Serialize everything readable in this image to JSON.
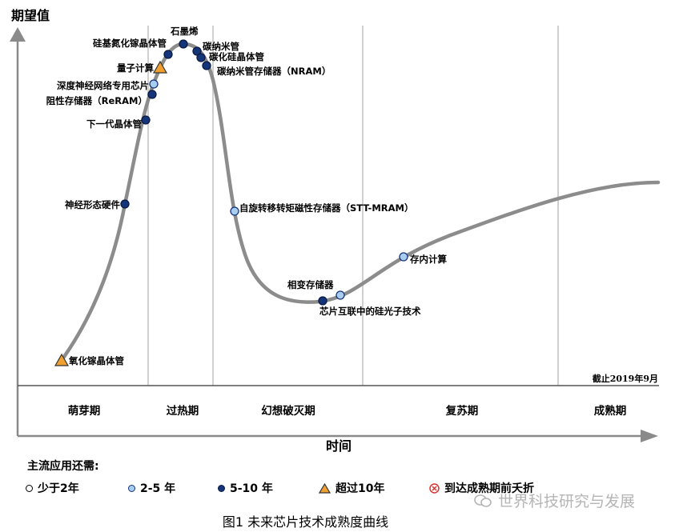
{
  "chart_data": {
    "type": "hype-cycle",
    "y_axis_label": "期望值",
    "x_axis_label": "时间",
    "cutoff_note": "截止2019年9月",
    "phases": [
      "萌芽期",
      "过热期",
      "幻想破灭期",
      "复苏期",
      "成熟期"
    ],
    "technologies": [
      {
        "label": "氧化镓晶体管",
        "timeline": "超过10年"
      },
      {
        "label": "神经形态硬件",
        "timeline": "5-10 年"
      },
      {
        "label": "下一代晶体管",
        "timeline": "5-10 年"
      },
      {
        "label": "阻性存储器（ReRAM）",
        "timeline": "5-10 年"
      },
      {
        "label": "深度神经网络专用芯片",
        "timeline": "2-5 年"
      },
      {
        "label": "量子计算",
        "timeline": "超过10年"
      },
      {
        "label": "硅基氮化镓晶体管",
        "timeline": "5-10 年"
      },
      {
        "label": "石墨烯",
        "timeline": "5-10 年"
      },
      {
        "label": "碳纳米管",
        "timeline": "5-10 年"
      },
      {
        "label": "碳化硅晶体管",
        "timeline": "5-10 年"
      },
      {
        "label": "碳纳米管存储器（NRAM）",
        "timeline": "5-10 年"
      },
      {
        "label": "自旋转移转矩磁性存储器（STT-MRAM）",
        "timeline": "2-5 年"
      },
      {
        "label": "相变存储器",
        "timeline": "5-10 年"
      },
      {
        "label": "芯片互联中的硅光子技术",
        "timeline": "2-5 年"
      },
      {
        "label": "存内计算",
        "timeline": "2-5 年"
      }
    ]
  },
  "legend": {
    "title": "主流应用还需:",
    "items": [
      {
        "label": "少于2年",
        "color": "#ffffff"
      },
      {
        "label": "2-5 年",
        "color": "#a8cdf0"
      },
      {
        "label": "5-10 年",
        "color": "#15357a"
      },
      {
        "label": "超过10年",
        "color": "#f0a030"
      },
      {
        "label": "到达成熟期前夭折",
        "color": "#e03030"
      }
    ]
  },
  "caption": "图1  未来芯片技术成熟度曲线",
  "watermark": "世界科技研究与发展"
}
